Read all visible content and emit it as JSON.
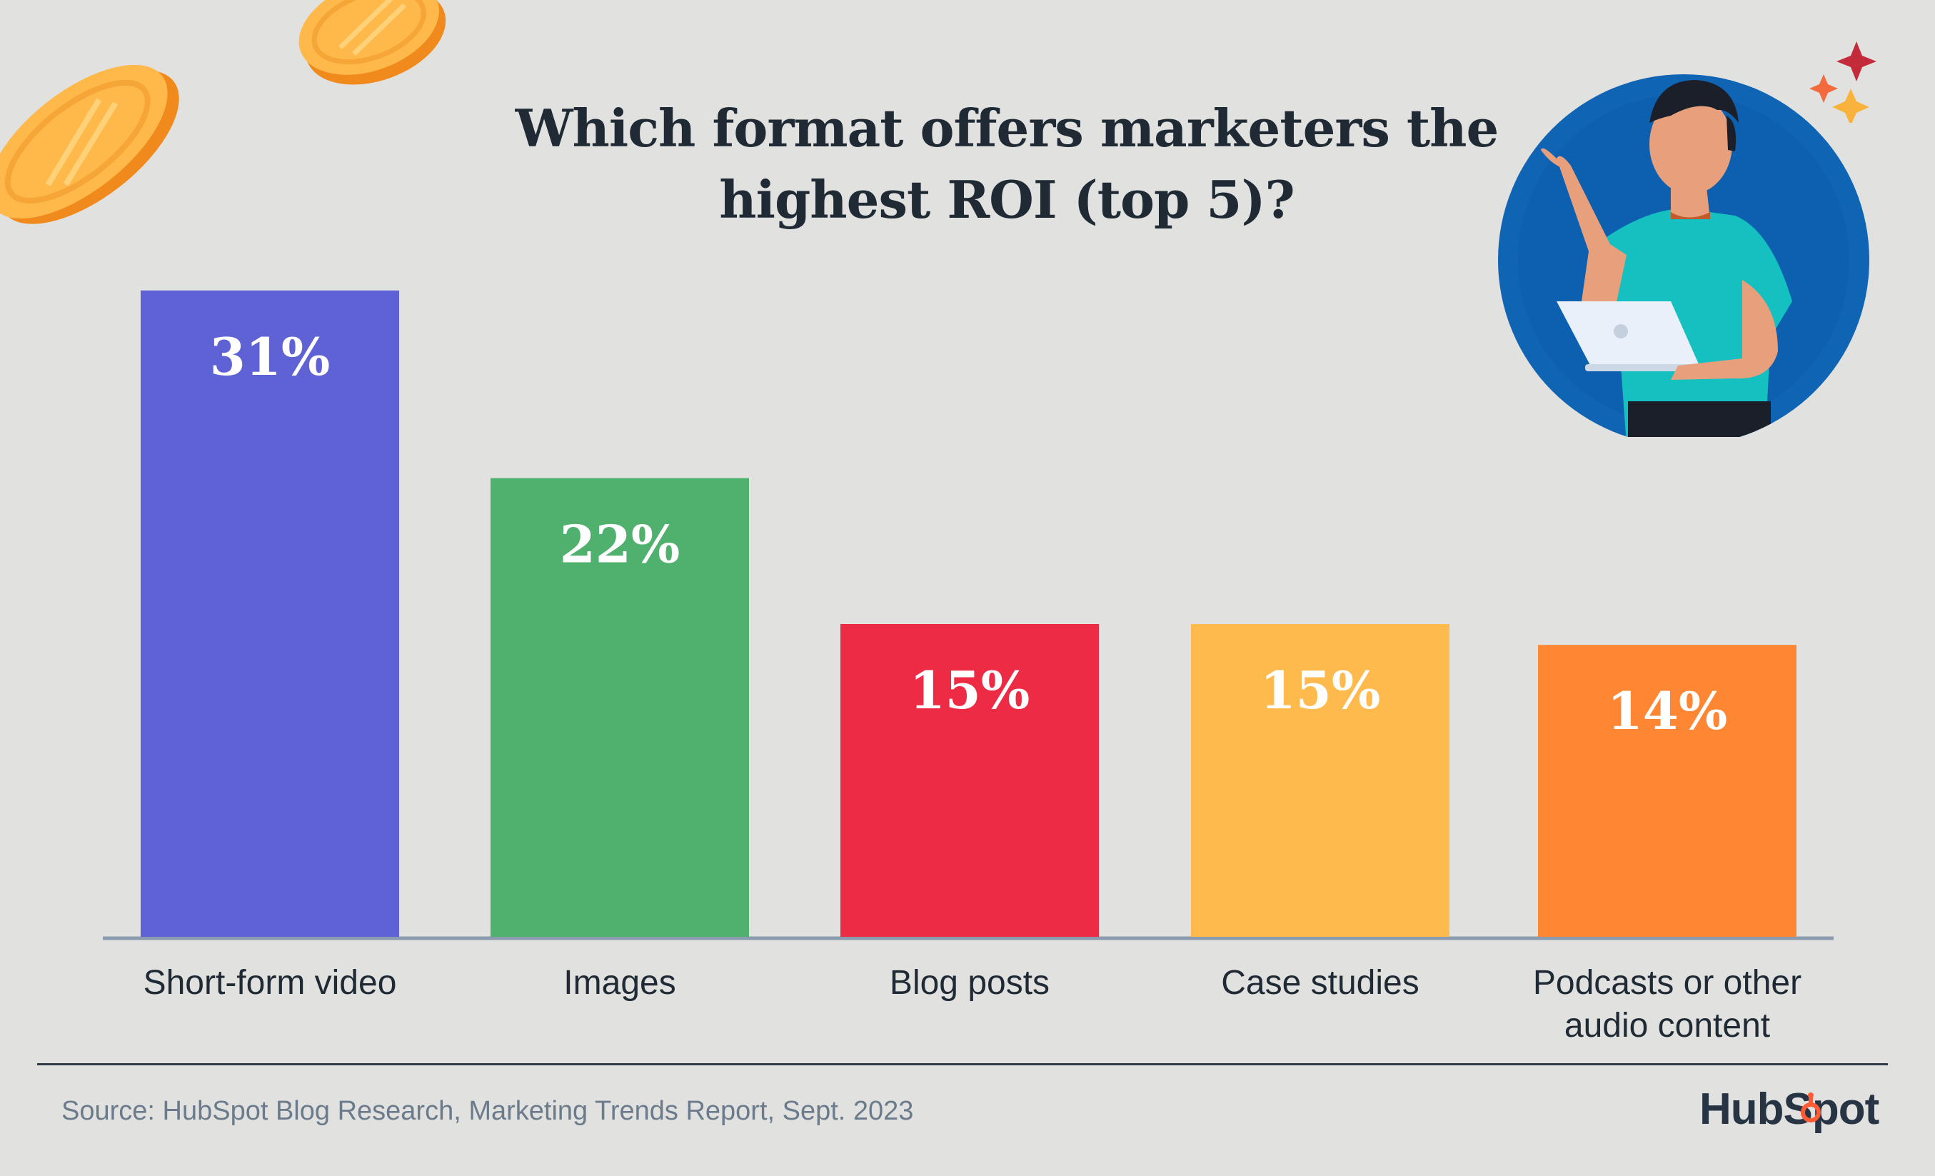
{
  "title_line1": "Which format offers marketers the",
  "title_line2": "highest ROI (top 5)?",
  "source": "Source: HubSpot Blog Research, Marketing Trends Report, Sept. 2023",
  "brand": "HubSpot",
  "colors": {
    "background": "#e1e2df",
    "axis": "#8a9bb0",
    "text": "#1f2a35",
    "brand_accent": "#ff5c35"
  },
  "chart_data": {
    "type": "bar",
    "title": "Which format offers marketers the highest ROI (top 5)?",
    "categories": [
      [
        "Short-form video"
      ],
      [
        "Images"
      ],
      [
        "Blog posts"
      ],
      [
        "Case studies"
      ],
      [
        "Podcasts or other",
        "audio content"
      ]
    ],
    "values": [
      31,
      22,
      15,
      15,
      14
    ],
    "value_labels": [
      "31%",
      "22%",
      "15%",
      "15%",
      "14%"
    ],
    "bar_colors": [
      "#5e62d5",
      "#50b06d",
      "#ee2b45",
      "#ffba4d",
      "#ff8733"
    ],
    "xlabel": "",
    "ylabel": "",
    "grid": false,
    "legend": "none"
  },
  "illustration": {
    "icons": [
      "coin-icon",
      "sparkle-icon",
      "person-with-laptop-icon"
    ]
  }
}
